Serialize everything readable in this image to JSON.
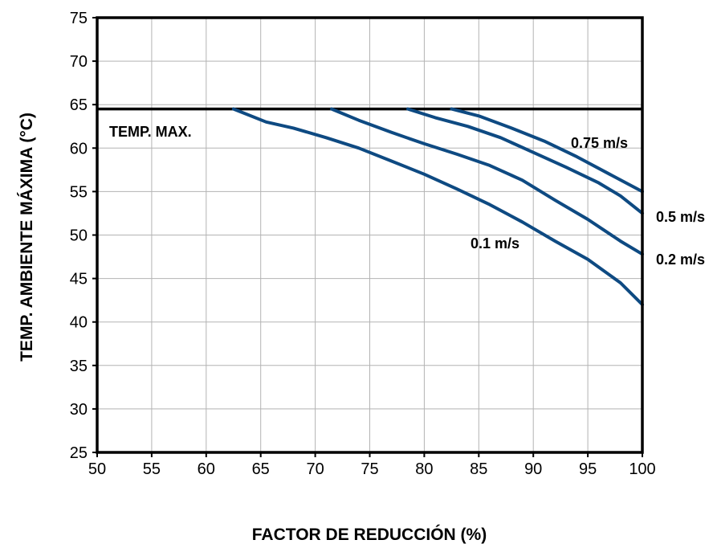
{
  "chart_data": {
    "type": "line",
    "xlabel": "FACTOR DE REDUCCIÓN (%)",
    "ylabel": "TEMP. AMBIENTE MÁXIMA (°C)",
    "xlim": [
      50,
      100
    ],
    "ylim": [
      25,
      75
    ],
    "x_ticks": [
      50,
      55,
      60,
      65,
      70,
      75,
      80,
      85,
      90,
      95,
      100
    ],
    "y_ticks": [
      25,
      30,
      35,
      40,
      45,
      50,
      55,
      60,
      65,
      70,
      75
    ],
    "grid": true,
    "legend": "none",
    "colors": {
      "series": "#0e4a82",
      "limit": "#000000",
      "grid": "#b3b3b3"
    },
    "max_line": {
      "label": "TEMP. MAX.",
      "y": 64.5
    },
    "series": [
      {
        "name": "0.1 m/s",
        "points": [
          [
            62.5,
            64.5
          ],
          [
            65.5,
            63
          ],
          [
            68,
            62.3
          ],
          [
            71,
            61.2
          ],
          [
            74,
            60
          ],
          [
            77,
            58.5
          ],
          [
            80,
            57
          ],
          [
            83,
            55.3
          ],
          [
            86,
            53.5
          ],
          [
            89,
            51.5
          ],
          [
            92,
            49.3
          ],
          [
            95,
            47.2
          ],
          [
            98,
            44.5
          ],
          [
            100,
            42
          ]
        ]
      },
      {
        "name": "0.2 m/s",
        "points": [
          [
            71.5,
            64.5
          ],
          [
            74,
            63.2
          ],
          [
            77,
            61.8
          ],
          [
            80,
            60.5
          ],
          [
            83,
            59.3
          ],
          [
            86,
            58
          ],
          [
            89,
            56.3
          ],
          [
            92,
            54
          ],
          [
            95,
            51.8
          ],
          [
            98,
            49.3
          ],
          [
            100,
            47.8
          ]
        ]
      },
      {
        "name": "0.5 m/s",
        "points": [
          [
            78.5,
            64.5
          ],
          [
            81,
            63.5
          ],
          [
            84,
            62.5
          ],
          [
            87,
            61.2
          ],
          [
            90,
            59.5
          ],
          [
            93,
            57.8
          ],
          [
            96,
            56
          ],
          [
            98,
            54.5
          ],
          [
            100,
            52.5
          ]
        ]
      },
      {
        "name": "0.75 m/s",
        "points": [
          [
            82.5,
            64.5
          ],
          [
            85,
            63.7
          ],
          [
            88,
            62.3
          ],
          [
            91,
            60.8
          ],
          [
            94,
            59
          ],
          [
            97,
            57
          ],
          [
            100,
            55
          ]
        ]
      }
    ],
    "annotations": [
      {
        "text": "TEMP. MAX."
      },
      {
        "text": "0.75 m/s"
      },
      {
        "text": "0.5 m/s"
      },
      {
        "text": "0.2 m/s"
      },
      {
        "text": "0.1 m/s"
      }
    ]
  }
}
